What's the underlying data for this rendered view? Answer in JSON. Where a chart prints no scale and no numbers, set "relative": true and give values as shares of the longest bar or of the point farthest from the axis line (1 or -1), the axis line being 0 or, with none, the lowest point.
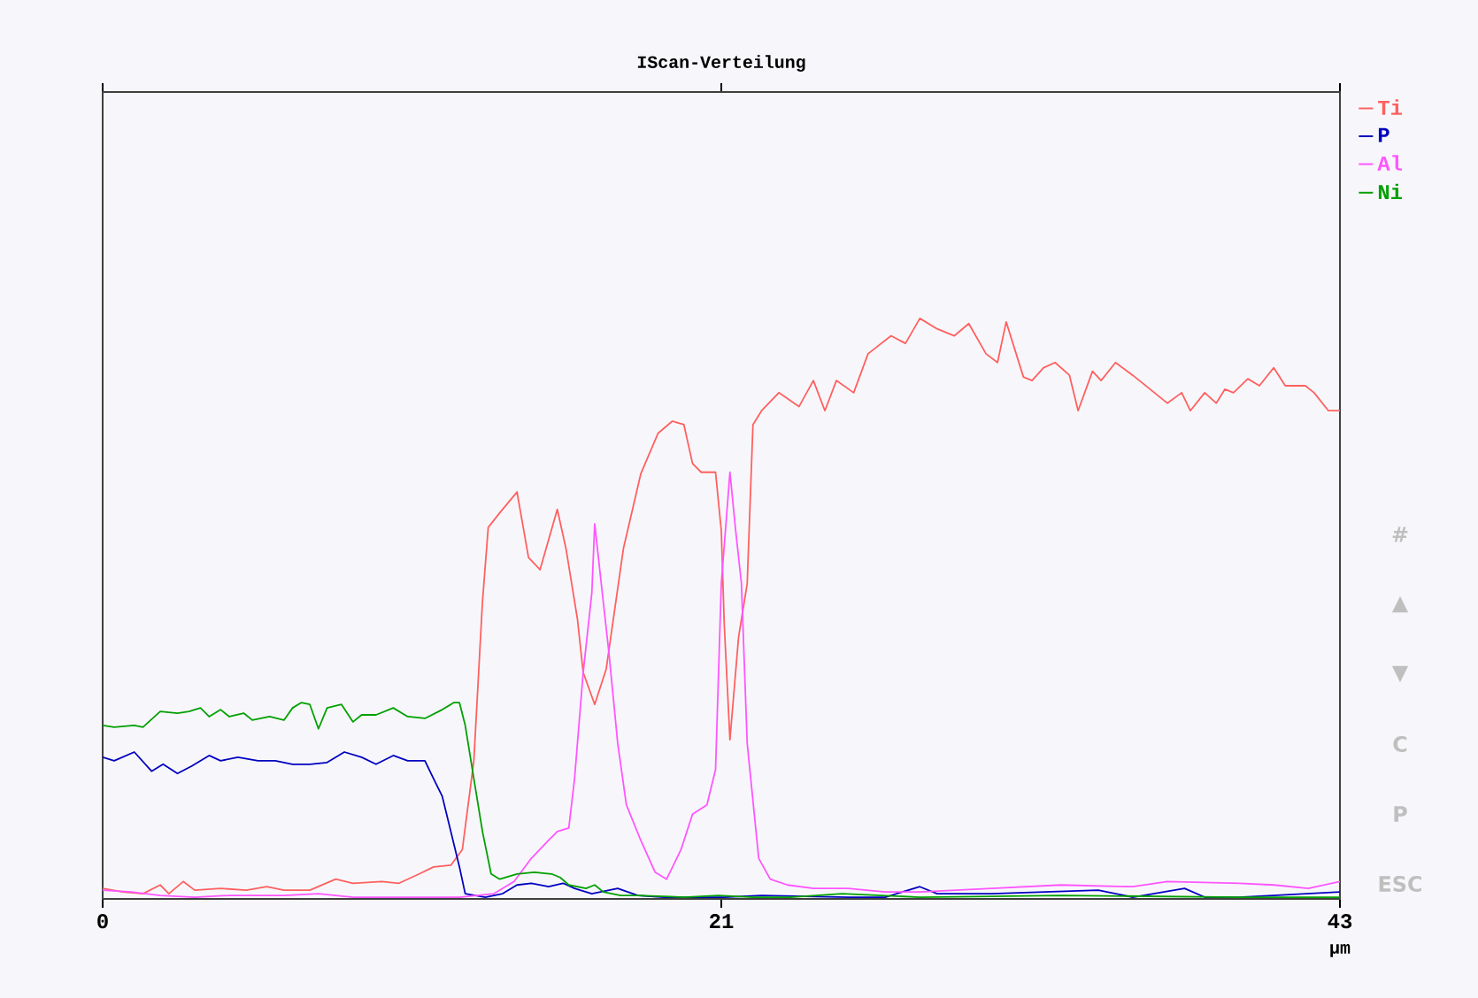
{
  "chart_data": {
    "type": "line",
    "title": "IScan-Verteilung",
    "xlabel": "µm",
    "relative": true,
    "legend": "top right",
    "xlim": [
      0,
      43
    ],
    "xticks": [
      0,
      {
        "value": 21.5,
        "label": "21"
      },
      43
    ],
    "annotations": [
      "#",
      "▲",
      "▼",
      "C",
      "P",
      "ESC"
    ],
    "series": [
      {
        "name": "Ti",
        "color": "#ff6060",
        "x": [
          0,
          0.7,
          1.4,
          2.0,
          2.3,
          2.8,
          3.2,
          4.1,
          5.0,
          5.7,
          6.3,
          7.2,
          8.1,
          8.7,
          9.7,
          10.3,
          11.0,
          11.5,
          12.1,
          12.5,
          12.9,
          13.2,
          13.4,
          13.8,
          14.4,
          14.8,
          15.2,
          15.8,
          16.1,
          16.5,
          16.7,
          17.1,
          17.5,
          18.1,
          18.7,
          19.3,
          19.8,
          20.2,
          20.5,
          20.8,
          21.3,
          21.5,
          21.6,
          21.8,
          22.1,
          22.4,
          22.6,
          22.9,
          23.5,
          24.2,
          24.7,
          25.1,
          25.5,
          26.1,
          26.6,
          27.4,
          27.9,
          28.4,
          29.0,
          29.6,
          30.1,
          30.7,
          31.1,
          31.4,
          32.0,
          32.3,
          32.7,
          33.1,
          33.6,
          33.9,
          34.4,
          34.7,
          35.2,
          35.8,
          36.4,
          37.0,
          37.5,
          37.8,
          38.3,
          38.7,
          39.0,
          39.3,
          39.8,
          40.2,
          40.7,
          41.1,
          41.8,
          42.1,
          42.6,
          43
        ],
        "values": [
          0.018,
          0.012,
          0.009,
          0.024,
          0.009,
          0.03,
          0.015,
          0.018,
          0.015,
          0.021,
          0.015,
          0.015,
          0.034,
          0.027,
          0.03,
          0.027,
          0.043,
          0.055,
          0.058,
          0.085,
          0.238,
          0.512,
          0.64,
          0.665,
          0.701,
          0.588,
          0.567,
          0.671,
          0.604,
          0.482,
          0.39,
          0.335,
          0.396,
          0.604,
          0.732,
          0.802,
          0.823,
          0.817,
          0.75,
          0.735,
          0.735,
          0.634,
          0.476,
          0.274,
          0.451,
          0.543,
          0.817,
          0.841,
          0.872,
          0.848,
          0.893,
          0.841,
          0.893,
          0.872,
          0.939,
          0.97,
          0.957,
          1.0,
          0.982,
          0.97,
          0.991,
          0.939,
          0.924,
          0.994,
          0.899,
          0.893,
          0.915,
          0.924,
          0.902,
          0.841,
          0.909,
          0.893,
          0.924,
          0.902,
          0.878,
          0.854,
          0.872,
          0.841,
          0.872,
          0.854,
          0.878,
          0.872,
          0.896,
          0.884,
          0.915,
          0.884,
          0.884,
          0.872,
          0.841,
          0.841
        ]
      },
      {
        "name": "P",
        "color": "#0000c0",
        "x": [
          0,
          0.4,
          1.1,
          1.7,
          2.1,
          2.6,
          3.1,
          3.7,
          4.1,
          4.7,
          5.4,
          6.0,
          6.6,
          7.2,
          7.8,
          8.4,
          9.0,
          9.5,
          10.1,
          10.6,
          11.2,
          11.5,
          11.8,
          12.1,
          12.4,
          12.6,
          13.3,
          13.9,
          14.4,
          14.9,
          15.5,
          16.0,
          16.4,
          17.0,
          17.6,
          17.9,
          18.6,
          19.5,
          21.6,
          22.9,
          25.9,
          27.2,
          28.4,
          29.0,
          30.9,
          34.6,
          35.8,
          37.6,
          38.3,
          39.5,
          43
        ],
        "values": [
          0.244,
          0.238,
          0.253,
          0.22,
          0.232,
          0.216,
          0.229,
          0.247,
          0.238,
          0.244,
          0.238,
          0.238,
          0.232,
          0.232,
          0.235,
          0.253,
          0.244,
          0.232,
          0.247,
          0.238,
          0.238,
          0.207,
          0.177,
          0.116,
          0.055,
          0.009,
          0.003,
          0.009,
          0.024,
          0.027,
          0.021,
          0.027,
          0.018,
          0.009,
          0.015,
          0.018,
          0.006,
          0.003,
          0.003,
          0.006,
          0.003,
          0.003,
          0.021,
          0.009,
          0.009,
          0.015,
          0.003,
          0.018,
          0.003,
          0.003,
          0.012
        ]
      },
      {
        "name": "Al",
        "color": "#ff55ff",
        "x": [
          0,
          1.0,
          2.0,
          3.2,
          4.4,
          6.3,
          7.5,
          8.7,
          12.4,
          13.6,
          14.3,
          14.9,
          15.5,
          15.8,
          16.2,
          16.4,
          16.7,
          17.0,
          17.1,
          17.6,
          17.9,
          18.2,
          18.7,
          19.2,
          19.6,
          20.1,
          20.5,
          21.0,
          21.3,
          21.5,
          21.8,
          22.0,
          22.2,
          22.4,
          22.8,
          23.2,
          23.8,
          24.7,
          25.9,
          27.2,
          28.4,
          30.9,
          33.3,
          35.8,
          37.0,
          39.5,
          40.7,
          41.9,
          43
        ],
        "values": [
          0.015,
          0.012,
          0.006,
          0.003,
          0.006,
          0.006,
          0.009,
          0.003,
          0.003,
          0.009,
          0.03,
          0.07,
          0.101,
          0.116,
          0.122,
          0.207,
          0.39,
          0.527,
          0.646,
          0.421,
          0.268,
          0.162,
          0.101,
          0.046,
          0.034,
          0.085,
          0.146,
          0.162,
          0.223,
          0.543,
          0.735,
          0.634,
          0.543,
          0.268,
          0.07,
          0.034,
          0.024,
          0.018,
          0.018,
          0.012,
          0.012,
          0.018,
          0.024,
          0.021,
          0.03,
          0.027,
          0.024,
          0.018,
          0.03
        ]
      },
      {
        "name": "Ni",
        "color": "#00a000",
        "x": [
          0,
          0.4,
          1.1,
          1.4,
          2.0,
          2.6,
          3.0,
          3.4,
          3.7,
          4.1,
          4.4,
          4.9,
          5.2,
          5.8,
          6.3,
          6.6,
          6.9,
          7.2,
          7.5,
          7.8,
          8.3,
          8.7,
          9.0,
          9.5,
          10.1,
          10.6,
          11.2,
          11.8,
          12.2,
          12.4,
          12.6,
          12.9,
          13.2,
          13.5,
          13.8,
          14.4,
          15.0,
          15.6,
          15.9,
          16.2,
          16.8,
          17.1,
          17.4,
          18.0,
          18.6,
          20.2,
          21.4,
          22.6,
          23.9,
          25.7,
          28.4,
          33.3,
          39.5,
          43
        ],
        "values": [
          0.299,
          0.296,
          0.299,
          0.296,
          0.323,
          0.32,
          0.323,
          0.329,
          0.314,
          0.326,
          0.314,
          0.32,
          0.308,
          0.314,
          0.308,
          0.329,
          0.338,
          0.335,
          0.293,
          0.329,
          0.335,
          0.305,
          0.317,
          0.317,
          0.329,
          0.314,
          0.311,
          0.326,
          0.338,
          0.338,
          0.299,
          0.207,
          0.116,
          0.043,
          0.034,
          0.043,
          0.046,
          0.043,
          0.037,
          0.024,
          0.018,
          0.024,
          0.012,
          0.006,
          0.006,
          0.003,
          0.006,
          0.003,
          0.003,
          0.009,
          0.003,
          0.006,
          0.003,
          0.003
        ]
      }
    ]
  }
}
